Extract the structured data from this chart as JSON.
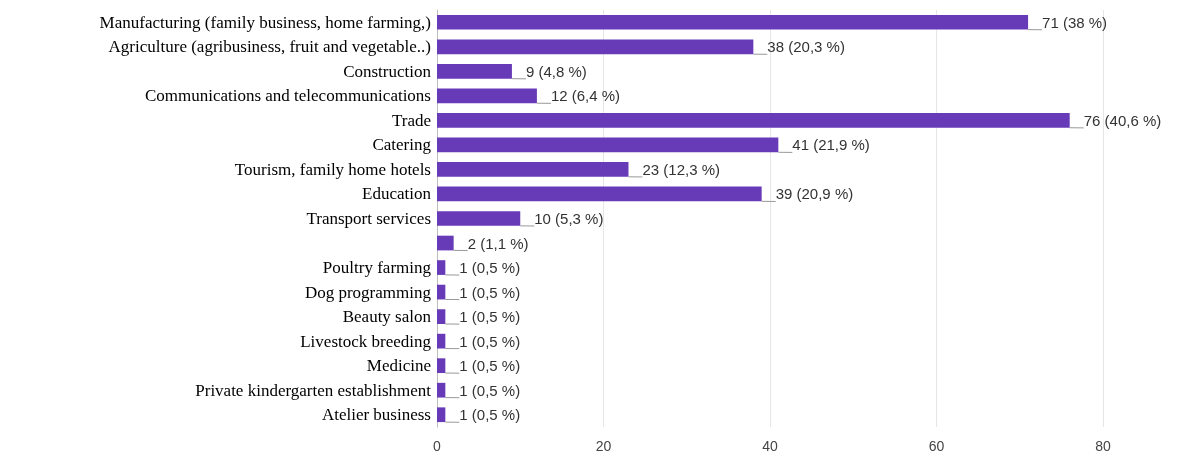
{
  "chart_data": {
    "type": "bar",
    "orientation": "horizontal",
    "categories": [
      "Manufacturing (family business, home farming,)",
      "Agriculture (agribusiness, fruit and vegetable..)",
      "Construction",
      "Communications and telecommunications",
      "Trade",
      "Catering",
      "Tourism, family home hotels",
      "Education",
      "Transport services",
      null,
      "Poultry farming",
      "Dog programming",
      "Beauty salon",
      "Livestock breeding",
      "Medicine",
      "Private kindergarten establishment",
      "Atelier business"
    ],
    "values": [
      71,
      38,
      9,
      12,
      76,
      41,
      23,
      39,
      10,
      2,
      1,
      1,
      1,
      1,
      1,
      1,
      1
    ],
    "value_labels": [
      "71 (38 %)",
      "38 (20,3 %)",
      "9 (4,8 %)",
      "12 (6,4 %)",
      "76 (40,6 %)",
      "41 (21,9 %)",
      "23 (12,3 %)",
      "39 (20,9 %)",
      "10 (5,3 %)",
      "2 (1,1 %)",
      "1 (0,5 %)",
      "1 (0,5 %)",
      "1 (0,5 %)",
      "1 (0,5 %)",
      "1 (0,5 %)",
      "1 (0,5 %)",
      "1 (0,5 %)"
    ],
    "color": "#673ab7",
    "xlim": [
      0,
      80
    ],
    "xticks": [
      0,
      20,
      40,
      60,
      80
    ],
    "grid": "x"
  }
}
